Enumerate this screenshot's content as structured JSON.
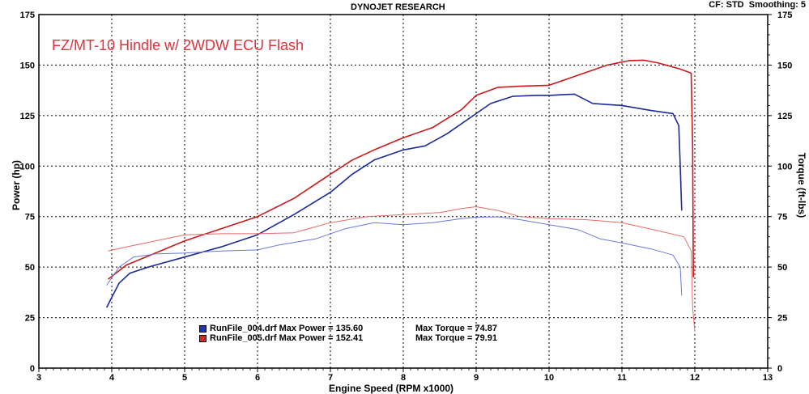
{
  "header": {
    "center": "DYNOJET RESEARCH",
    "right": "CF: STD  Smoothing: 5"
  },
  "overlay_title": "FZ/MT-10 Hindle w/ 2WDW ECU Flash",
  "legend": [
    {
      "file": "RunFile_004.drf Max Power = 135.60",
      "torque": "Max Torque = 74.87",
      "color": "#2233bb"
    },
    {
      "file": "RunFile_005.drf Max Power = 152.41",
      "torque": "Max Torque = 79.91",
      "color": "#dd2222"
    }
  ],
  "chart_data": {
    "type": "line",
    "title": "DYNOJET RESEARCH",
    "xlabel": "Engine Speed (RPM x1000)",
    "ylabel_left": "Power (hp)",
    "ylabel_right": "Torque (ft-lbs)",
    "xlim": [
      3,
      13
    ],
    "ylim": [
      0,
      175
    ],
    "xticks": [
      3,
      4,
      5,
      6,
      7,
      8,
      9,
      10,
      11,
      12,
      13
    ],
    "yticks": [
      0,
      25,
      50,
      75,
      100,
      125,
      150,
      175
    ],
    "grid": true,
    "colors": {
      "run004": "#2233bb",
      "run005": "#dd2222"
    },
    "series": [
      {
        "name": "RunFile_004.drf",
        "measure": "Power (hp)",
        "color": "#1a2a9a",
        "points": [
          [
            3.93,
            30
          ],
          [
            4.0,
            35
          ],
          [
            4.1,
            42
          ],
          [
            4.25,
            47
          ],
          [
            4.5,
            50
          ],
          [
            5.0,
            55
          ],
          [
            5.5,
            60
          ],
          [
            6.0,
            66
          ],
          [
            6.5,
            76
          ],
          [
            7.0,
            87
          ],
          [
            7.3,
            96
          ],
          [
            7.6,
            103
          ],
          [
            8.0,
            108
          ],
          [
            8.3,
            110
          ],
          [
            8.6,
            116
          ],
          [
            9.0,
            126
          ],
          [
            9.2,
            131
          ],
          [
            9.5,
            134.5
          ],
          [
            9.8,
            135
          ],
          [
            10.0,
            135
          ],
          [
            10.2,
            135.4
          ],
          [
            10.35,
            135.6
          ],
          [
            10.6,
            131
          ],
          [
            11.0,
            130
          ],
          [
            11.4,
            127.5
          ],
          [
            11.7,
            126
          ],
          [
            11.78,
            120
          ],
          [
            11.8,
            100
          ],
          [
            11.82,
            78
          ]
        ]
      },
      {
        "name": "RunFile_005.drf",
        "measure": "Power (hp)",
        "color": "#cc1818",
        "points": [
          [
            3.95,
            44
          ],
          [
            4.2,
            51
          ],
          [
            4.6,
            57
          ],
          [
            5.0,
            63
          ],
          [
            5.5,
            69
          ],
          [
            6.0,
            75
          ],
          [
            6.5,
            84
          ],
          [
            7.0,
            96
          ],
          [
            7.3,
            103
          ],
          [
            7.6,
            108
          ],
          [
            8.0,
            114
          ],
          [
            8.4,
            119
          ],
          [
            8.8,
            128
          ],
          [
            9.0,
            135
          ],
          [
            9.3,
            139
          ],
          [
            9.6,
            139.5
          ],
          [
            10.0,
            140
          ],
          [
            10.4,
            145
          ],
          [
            10.8,
            150
          ],
          [
            11.1,
            152.2
          ],
          [
            11.3,
            152.4
          ],
          [
            11.5,
            151
          ],
          [
            11.8,
            148
          ],
          [
            11.95,
            146
          ],
          [
            11.97,
            110
          ],
          [
            11.98,
            45
          ]
        ]
      },
      {
        "name": "RunFile_004.drf",
        "measure": "Torque (ft-lbs)",
        "color": "#6a78d8",
        "points": [
          [
            3.93,
            41
          ],
          [
            4.1,
            50
          ],
          [
            4.3,
            55
          ],
          [
            4.6,
            56.5
          ],
          [
            5.0,
            57
          ],
          [
            5.5,
            58
          ],
          [
            6.0,
            58.5
          ],
          [
            6.3,
            61
          ],
          [
            6.8,
            64
          ],
          [
            7.2,
            69
          ],
          [
            7.6,
            72
          ],
          [
            8.0,
            71
          ],
          [
            8.4,
            72
          ],
          [
            8.8,
            74
          ],
          [
            9.0,
            74.7
          ],
          [
            9.3,
            74.87
          ],
          [
            9.6,
            73.5
          ],
          [
            10.0,
            71
          ],
          [
            10.4,
            68.5
          ],
          [
            10.7,
            64
          ],
          [
            11.0,
            62
          ],
          [
            11.4,
            59
          ],
          [
            11.7,
            56
          ],
          [
            11.8,
            50
          ],
          [
            11.82,
            36
          ]
        ]
      },
      {
        "name": "RunFile_005.drf",
        "measure": "Torque (ft-lbs)",
        "color": "#e86a6a",
        "points": [
          [
            3.95,
            58
          ],
          [
            4.2,
            60
          ],
          [
            4.6,
            63
          ],
          [
            5.0,
            66
          ],
          [
            5.5,
            66.5
          ],
          [
            6.0,
            66.5
          ],
          [
            6.5,
            67
          ],
          [
            7.0,
            72
          ],
          [
            7.5,
            75
          ],
          [
            8.0,
            76
          ],
          [
            8.5,
            77
          ],
          [
            8.8,
            79
          ],
          [
            9.0,
            79.91
          ],
          [
            9.3,
            78
          ],
          [
            9.6,
            75
          ],
          [
            10.0,
            74
          ],
          [
            10.5,
            73.5
          ],
          [
            11.0,
            72
          ],
          [
            11.5,
            68
          ],
          [
            11.85,
            65
          ],
          [
            11.95,
            58
          ],
          [
            11.97,
            30
          ],
          [
            12.0,
            18
          ]
        ]
      }
    ]
  }
}
